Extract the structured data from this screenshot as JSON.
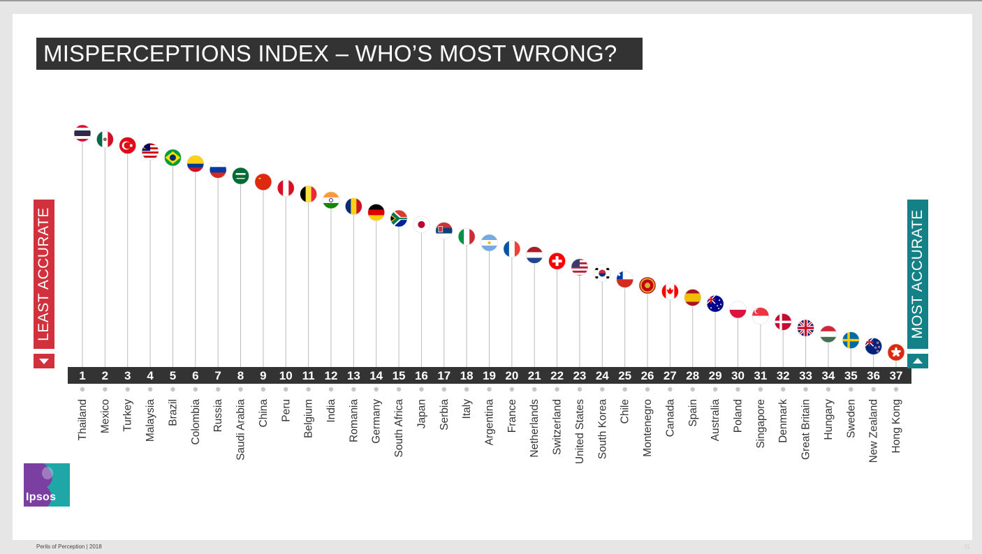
{
  "slide": {
    "title": "MISPERCEPTIONS INDEX – WHO’S MOST WRONG?",
    "left_label": "LEAST ACCURATE",
    "right_label": "MOST ACCURATE",
    "footer": "Perils of Perception | 2018",
    "page_number": "31",
    "logo_text": "Ipsos"
  },
  "colors": {
    "title_bg": "#333333",
    "least_accurate": "#d0313c",
    "most_accurate": "#138186",
    "rank_bar": "#333333",
    "stem": "#bbbbbb"
  },
  "chart_data": {
    "type": "ranking",
    "order": "least accurate to most accurate",
    "categories": [
      "Thailand",
      "Mexico",
      "Turkey",
      "Malaysia",
      "Brazil",
      "Colombia",
      "Russia",
      "Saudi Arabia",
      "China",
      "Peru",
      "Belgium",
      "India",
      "Romania",
      "Germany",
      "South Africa",
      "Japan",
      "Serbia",
      "Italy",
      "Argentina",
      "France",
      "Netherlands",
      "Switzerland",
      "United States",
      "South Korea",
      "Chile",
      "Montenegro",
      "Canada",
      "Spain",
      "Australia",
      "Poland",
      "Singapore",
      "Denmark",
      "Great Britain",
      "Hungary",
      "Sweden",
      "New Zealand",
      "Hong Kong"
    ],
    "ranks": [
      1,
      2,
      3,
      4,
      5,
      6,
      7,
      8,
      9,
      10,
      11,
      12,
      13,
      14,
      15,
      16,
      17,
      18,
      19,
      20,
      21,
      22,
      23,
      24,
      25,
      26,
      27,
      28,
      29,
      30,
      31,
      32,
      33,
      34,
      35,
      36,
      37
    ],
    "flag_icons": [
      "thailand-flag-icon",
      "mexico-flag-icon",
      "turkey-flag-icon",
      "malaysia-flag-icon",
      "brazil-flag-icon",
      "colombia-flag-icon",
      "russia-flag-icon",
      "saudi-arabia-flag-icon",
      "china-flag-icon",
      "peru-flag-icon",
      "belgium-flag-icon",
      "india-flag-icon",
      "romania-flag-icon",
      "germany-flag-icon",
      "south-africa-flag-icon",
      "japan-flag-icon",
      "serbia-flag-icon",
      "italy-flag-icon",
      "argentina-flag-icon",
      "france-flag-icon",
      "netherlands-flag-icon",
      "switzerland-flag-icon",
      "united-states-flag-icon",
      "south-korea-flag-icon",
      "chile-flag-icon",
      "montenegro-flag-icon",
      "canada-flag-icon",
      "spain-flag-icon",
      "australia-flag-icon",
      "poland-flag-icon",
      "singapore-flag-icon",
      "denmark-flag-icon",
      "great-britain-flag-icon",
      "hungary-flag-icon",
      "sweden-flag-icon",
      "new-zealand-flag-icon",
      "hong-kong-flag-icon"
    ],
    "grid": false
  }
}
